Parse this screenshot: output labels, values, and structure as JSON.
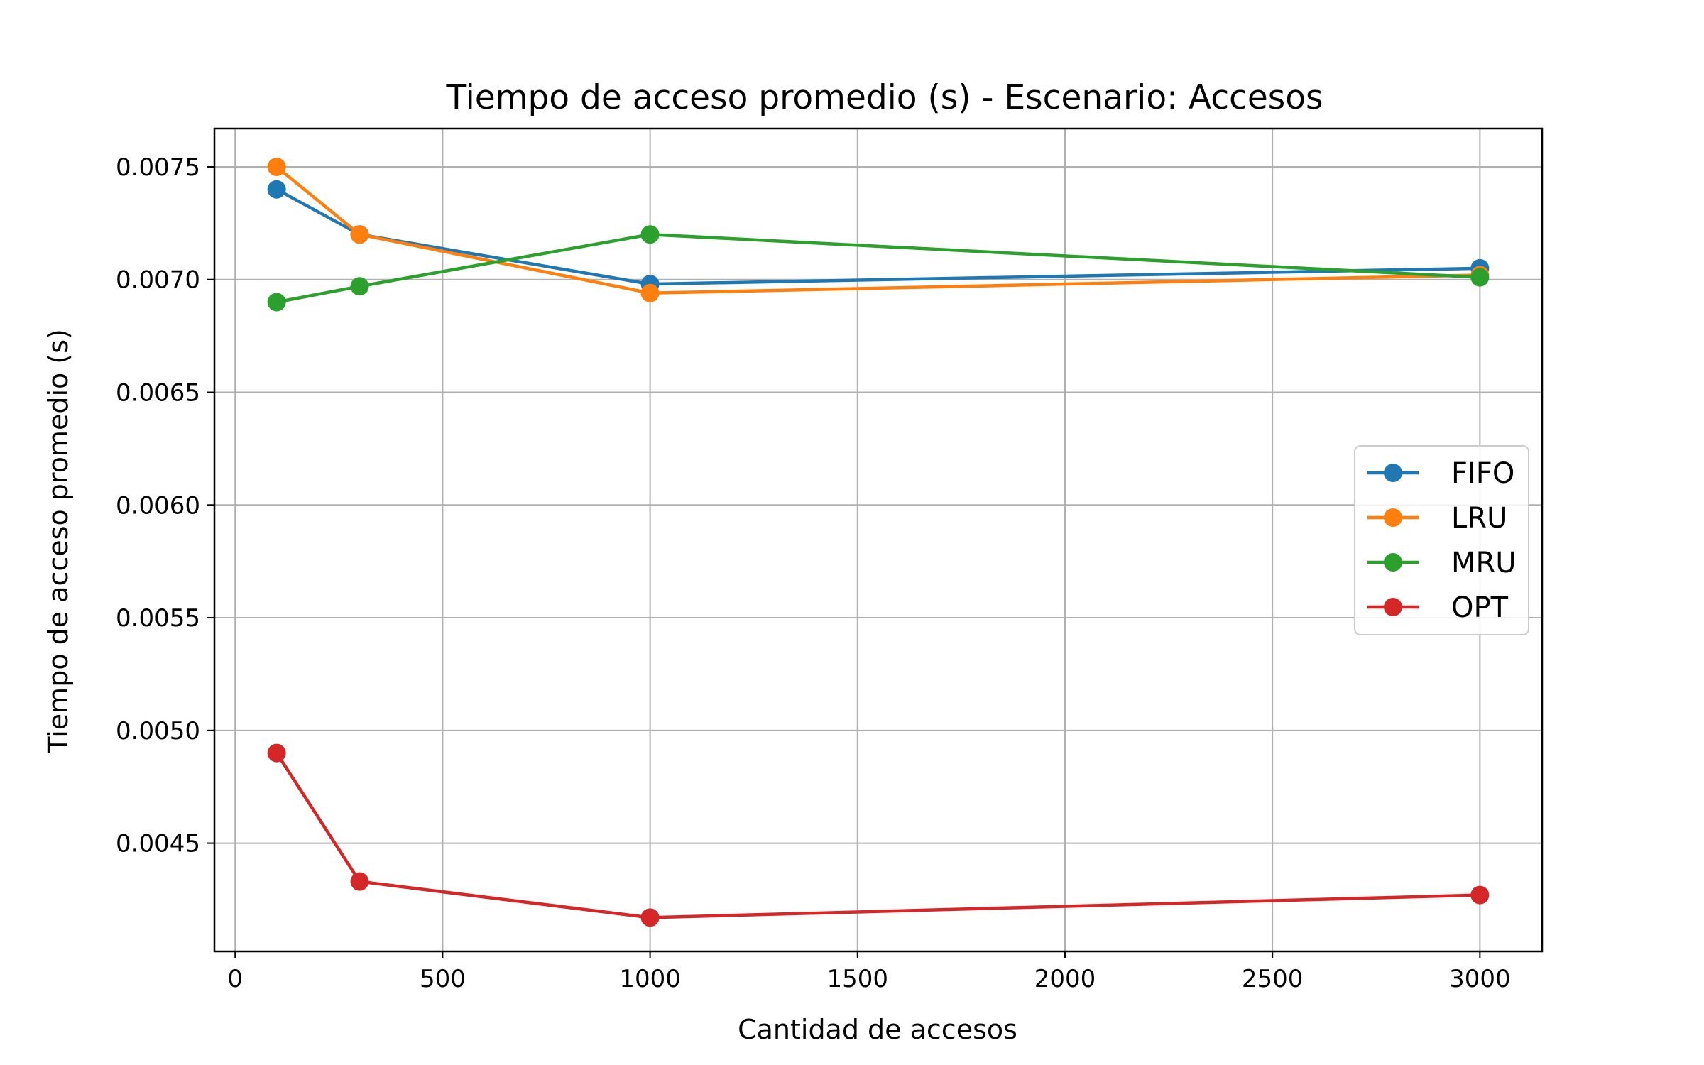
{
  "chart_data": {
    "type": "line",
    "title": "Tiempo de acceso promedio (s) - Escenario: Accesos",
    "xlabel": "Cantidad de accesos",
    "ylabel": "Tiempo de acceso promedio (s)",
    "x": [
      100,
      300,
      1000,
      3000
    ],
    "xlim": [
      -50,
      3150
    ],
    "ylim": [
      0.00402,
      0.00767
    ],
    "xticks": [
      0,
      500,
      1000,
      1500,
      2000,
      2500,
      3000
    ],
    "xtick_labels": [
      "0",
      "500",
      "1000",
      "1500",
      "2000",
      "2500",
      "3000"
    ],
    "yticks": [
      0.0045,
      0.005,
      0.0055,
      0.006,
      0.0065,
      0.007,
      0.0075
    ],
    "ytick_labels": [
      "0.0045",
      "0.0050",
      "0.0055",
      "0.0060",
      "0.0065",
      "0.0070",
      "0.0075"
    ],
    "grid": true,
    "legend_position": "center-right",
    "series": [
      {
        "name": "FIFO",
        "color": "#1f77b4",
        "values": [
          0.0074,
          0.0072,
          0.00698,
          0.00705
        ]
      },
      {
        "name": "LRU",
        "color": "#ff7f0e",
        "values": [
          0.0075,
          0.0072,
          0.00694,
          0.00702
        ]
      },
      {
        "name": "MRU",
        "color": "#2ca02c",
        "values": [
          0.0069,
          0.00697,
          0.0072,
          0.00701
        ]
      },
      {
        "name": "OPT",
        "color": "#d62728",
        "values": [
          0.0049,
          0.00433,
          0.00417,
          0.00427
        ]
      }
    ]
  }
}
